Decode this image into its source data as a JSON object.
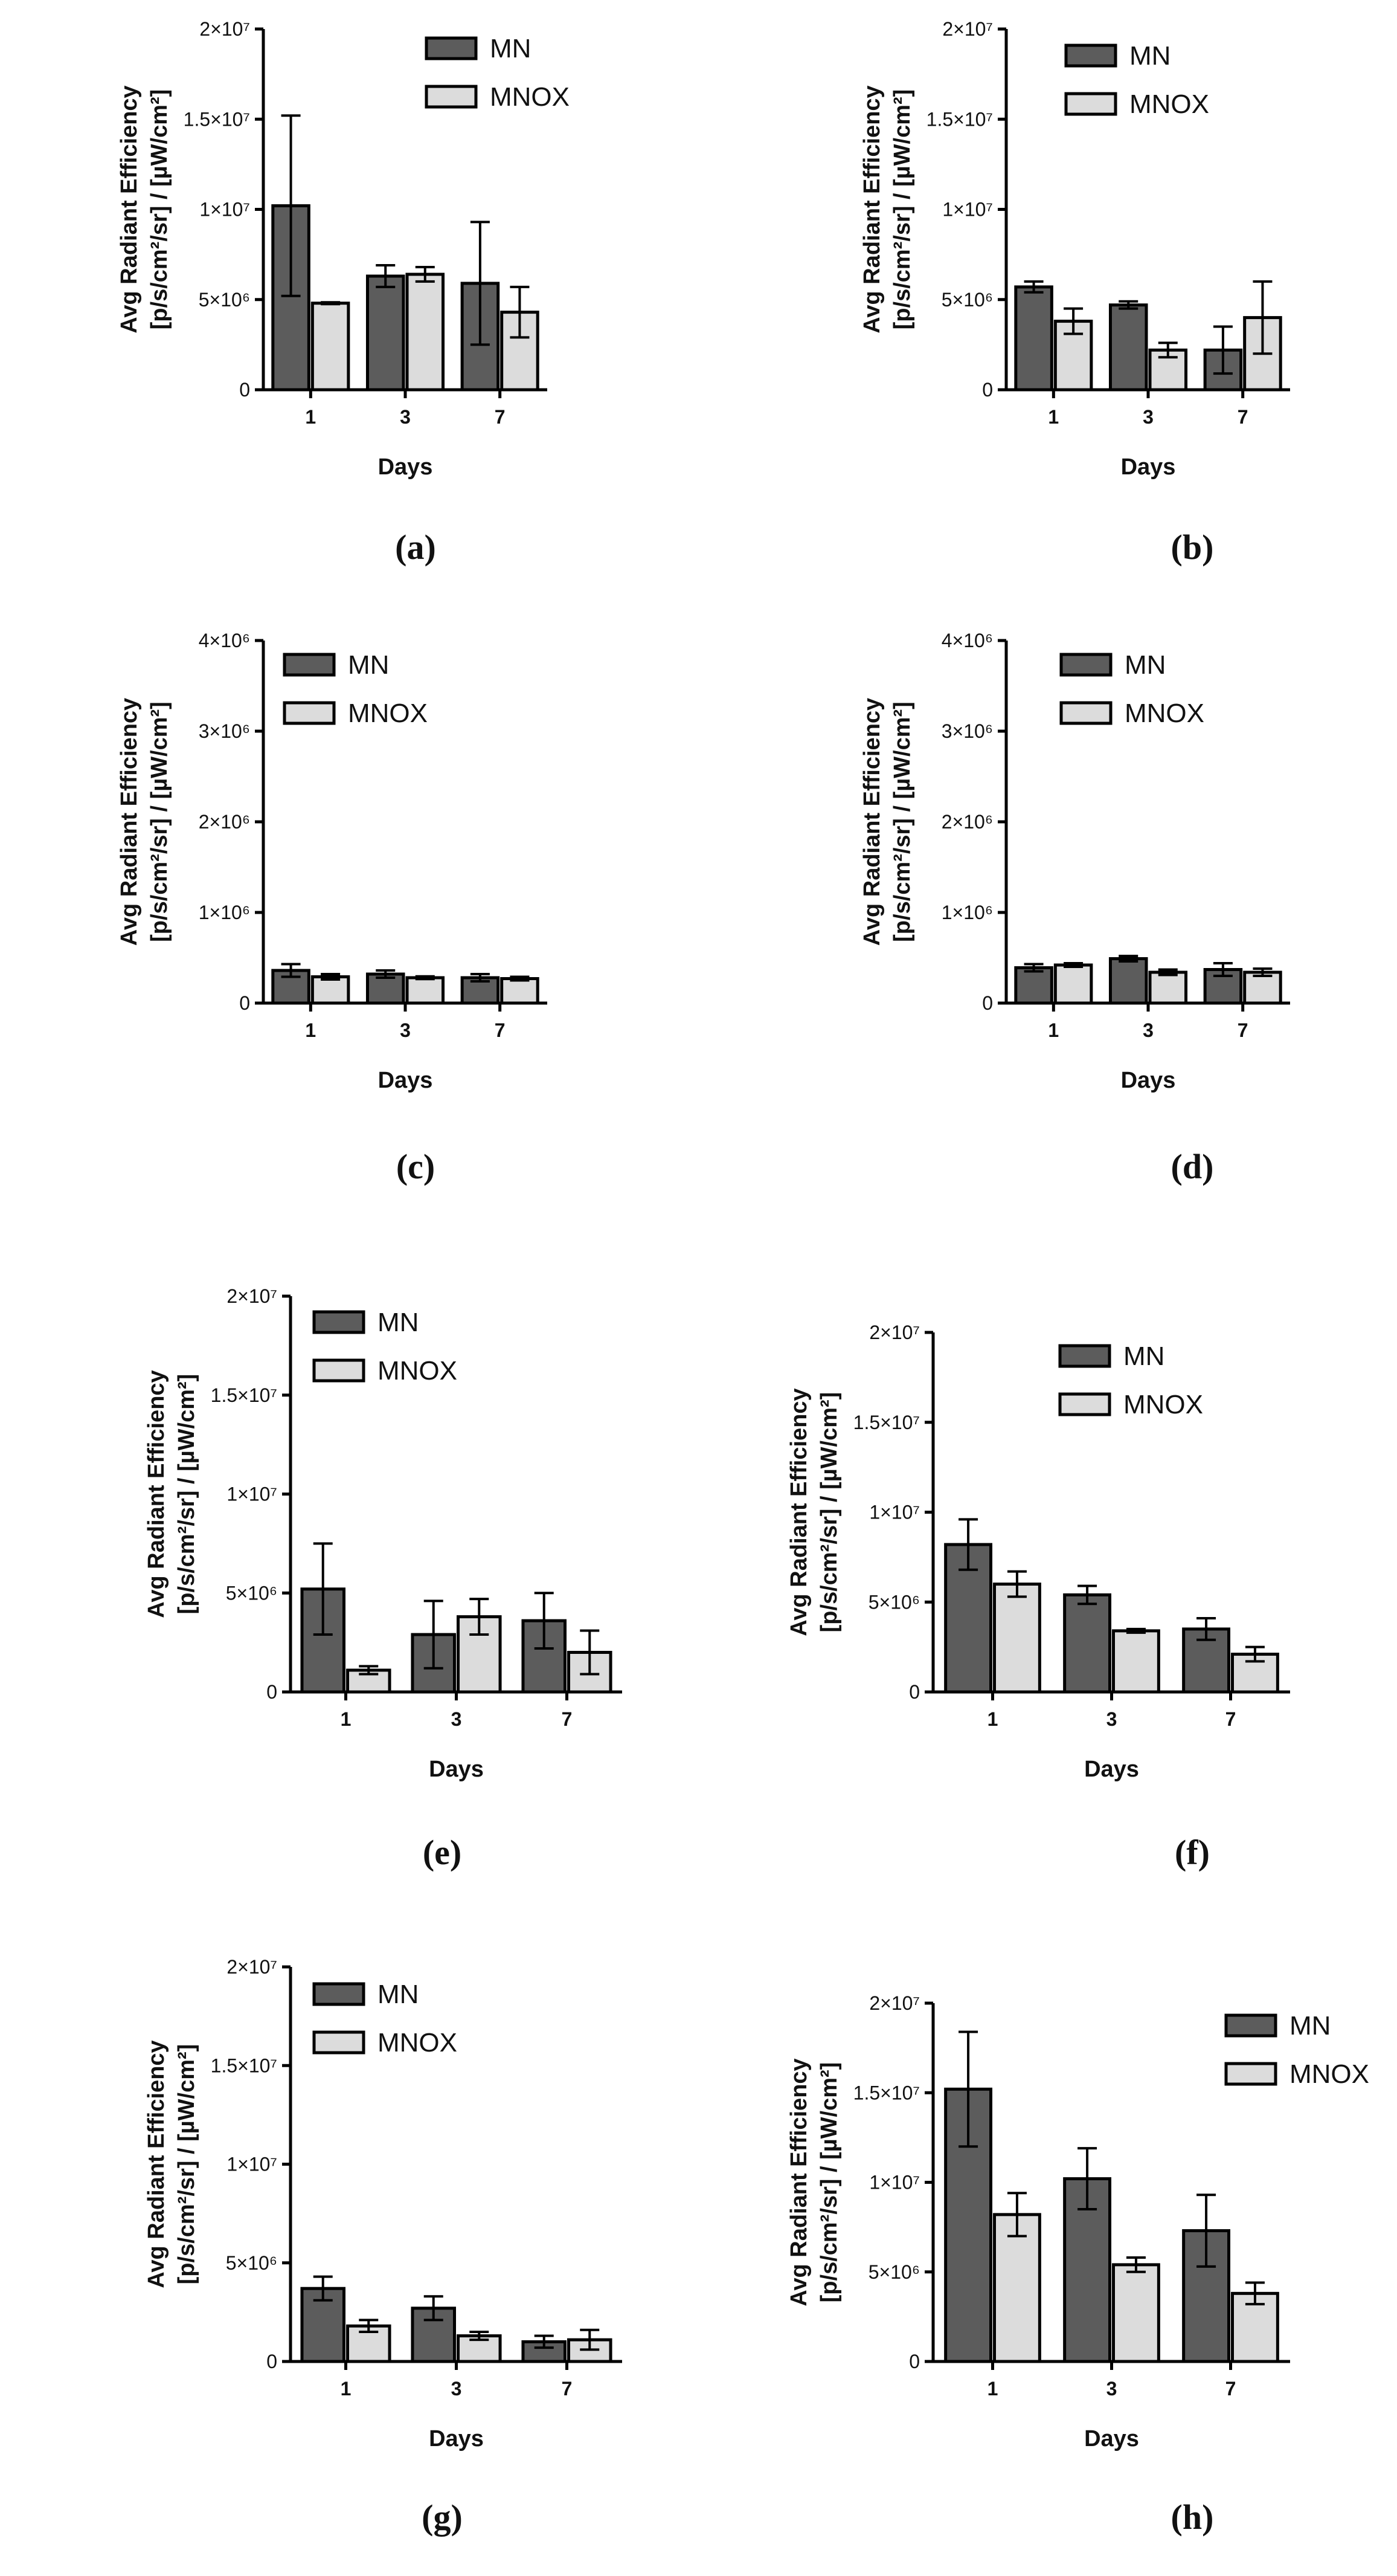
{
  "colors": {
    "mn": "#5c5c5c",
    "mnox": "#dcdcdc",
    "stroke": "#000000"
  },
  "chart_data": [
    {
      "panel": "(a)",
      "type": "bar",
      "categories": [
        "1",
        "3",
        "7"
      ],
      "xlabel": "Days",
      "ylabel_line1": "Avg Radiant Efficiency",
      "ylabel_line2": "[p/s/cm²/sr] / [µW/cm²]",
      "ylim": [
        0,
        20000000
      ],
      "yticks": [
        0,
        5000000,
        10000000,
        15000000,
        20000000
      ],
      "ytick_labels": [
        "0",
        "5×10⁶",
        "1×10⁷",
        "1.5×10⁷",
        "2×10⁷"
      ],
      "series": [
        {
          "name": "MN",
          "values": [
            10200000,
            6300000,
            5900000
          ],
          "errors": [
            5000000,
            600000,
            3400000
          ]
        },
        {
          "name": "MNOX",
          "values": [
            4800000,
            6400000,
            4300000
          ],
          "errors": [
            50000,
            400000,
            1400000
          ]
        }
      ]
    },
    {
      "panel": "(b)",
      "type": "bar",
      "categories": [
        "1",
        "3",
        "7"
      ],
      "xlabel": "Days",
      "ylabel_line1": "Avg Radiant Efficiency",
      "ylabel_line2": "[p/s/cm²/sr] / [µW/cm²]",
      "ylim": [
        0,
        20000000
      ],
      "yticks": [
        0,
        5000000,
        10000000,
        15000000,
        20000000
      ],
      "ytick_labels": [
        "0",
        "5×10⁶",
        "1×10⁷",
        "1.5×10⁷",
        "2×10⁷"
      ],
      "series": [
        {
          "name": "MN",
          "values": [
            5700000,
            4700000,
            2200000
          ],
          "errors": [
            300000,
            200000,
            1300000
          ]
        },
        {
          "name": "MNOX",
          "values": [
            3800000,
            2200000,
            4000000
          ],
          "errors": [
            700000,
            400000,
            2000000
          ]
        }
      ]
    },
    {
      "panel": "(c)",
      "type": "bar",
      "categories": [
        "1",
        "3",
        "7"
      ],
      "xlabel": "Days",
      "ylabel_line1": "Avg Radiant Efficiency",
      "ylabel_line2": "[p/s/cm²/sr] / [µW/cm²]",
      "ylim": [
        0,
        4000000
      ],
      "yticks": [
        0,
        1000000,
        2000000,
        3000000,
        4000000
      ],
      "ytick_labels": [
        "0",
        "1×10⁶",
        "2×10⁶",
        "3×10⁶",
        "4×10⁶"
      ],
      "series": [
        {
          "name": "MN",
          "values": [
            360000,
            320000,
            280000
          ],
          "errors": [
            70000,
            40000,
            40000
          ]
        },
        {
          "name": "MNOX",
          "values": [
            290000,
            280000,
            270000
          ],
          "errors": [
            30000,
            15000,
            20000
          ]
        }
      ]
    },
    {
      "panel": "(d)",
      "type": "bar",
      "categories": [
        "1",
        "3",
        "7"
      ],
      "xlabel": "Days",
      "ylabel_line1": "Avg Radiant Efficiency",
      "ylabel_line2": "[p/s/cm²/sr] / [µW/cm²]",
      "ylim": [
        0,
        4000000
      ],
      "yticks": [
        0,
        1000000,
        2000000,
        3000000,
        4000000
      ],
      "ytick_labels": [
        "0",
        "1×10⁶",
        "2×10⁶",
        "3×10⁶",
        "4×10⁶"
      ],
      "series": [
        {
          "name": "MN",
          "values": [
            390000,
            490000,
            370000
          ],
          "errors": [
            40000,
            30000,
            70000
          ]
        },
        {
          "name": "MNOX",
          "values": [
            420000,
            340000,
            340000
          ],
          "errors": [
            20000,
            30000,
            40000
          ]
        }
      ]
    },
    {
      "panel": "(e)",
      "type": "bar",
      "categories": [
        "1",
        "3",
        "7"
      ],
      "xlabel": "Days",
      "ylabel_line1": "Avg Radiant Efficiency",
      "ylabel_line2": "[p/s/cm²/sr] / [µW/cm²]",
      "ylim": [
        0,
        20000000
      ],
      "yticks": [
        0,
        5000000,
        10000000,
        15000000,
        20000000
      ],
      "ytick_labels": [
        "0",
        "5×10⁶",
        "1×10⁷",
        "1.5×10⁷",
        "2×10⁷"
      ],
      "series": [
        {
          "name": "MN",
          "values": [
            5200000,
            2900000,
            3600000
          ],
          "errors": [
            2300000,
            1700000,
            1400000
          ]
        },
        {
          "name": "MNOX",
          "values": [
            1100000,
            3800000,
            2000000
          ],
          "errors": [
            200000,
            900000,
            1100000
          ]
        }
      ]
    },
    {
      "panel": "(f)",
      "type": "bar",
      "categories": [
        "1",
        "3",
        "7"
      ],
      "xlabel": "Days",
      "ylabel_line1": "Avg Radiant Efficiency",
      "ylabel_line2": "[p/s/cm²/sr] / [µW/cm²]",
      "ylim": [
        0,
        20000000
      ],
      "yticks": [
        0,
        5000000,
        10000000,
        15000000,
        20000000
      ],
      "ytick_labels": [
        "0",
        "5×10⁶",
        "1×10⁷",
        "1.5×10⁷",
        "2×10⁷"
      ],
      "series": [
        {
          "name": "MN",
          "values": [
            8200000,
            5400000,
            3500000
          ],
          "errors": [
            1400000,
            500000,
            600000
          ]
        },
        {
          "name": "MNOX",
          "values": [
            6000000,
            3400000,
            2100000
          ],
          "errors": [
            700000,
            100000,
            400000
          ]
        }
      ]
    },
    {
      "panel": "(g)",
      "type": "bar",
      "categories": [
        "1",
        "3",
        "7"
      ],
      "xlabel": "Days",
      "ylabel_line1": "Avg Radiant Efficiency",
      "ylabel_line2": "[p/s/cm²/sr] / [µW/cm²]",
      "ylim": [
        0,
        20000000
      ],
      "yticks": [
        0,
        5000000,
        10000000,
        15000000,
        20000000
      ],
      "ytick_labels": [
        "0",
        "5×10⁶",
        "1×10⁷",
        "1.5×10⁷",
        "2×10⁷"
      ],
      "series": [
        {
          "name": "MN",
          "values": [
            3700000,
            2700000,
            1000000
          ],
          "errors": [
            600000,
            600000,
            300000
          ]
        },
        {
          "name": "MNOX",
          "values": [
            1800000,
            1300000,
            1100000
          ],
          "errors": [
            300000,
            200000,
            500000
          ]
        }
      ]
    },
    {
      "panel": "(h)",
      "type": "bar",
      "categories": [
        "1",
        "3",
        "7"
      ],
      "xlabel": "Days",
      "ylabel_line1": "Avg Radiant Efficiency",
      "ylabel_line2": "[p/s/cm²/sr] / [µW/cm²]",
      "ylim": [
        0,
        20000000
      ],
      "yticks": [
        0,
        5000000,
        10000000,
        15000000,
        20000000
      ],
      "ytick_labels": [
        "0",
        "5×10⁶",
        "1×10⁷",
        "1.5×10⁷",
        "2×10⁷"
      ],
      "series": [
        {
          "name": "MN",
          "values": [
            15200000,
            10200000,
            7300000
          ],
          "errors": [
            3200000,
            1700000,
            2000000
          ]
        },
        {
          "name": "MNOX",
          "values": [
            8200000,
            5400000,
            3800000
          ],
          "errors": [
            1200000,
            400000,
            600000
          ]
        }
      ]
    }
  ]
}
